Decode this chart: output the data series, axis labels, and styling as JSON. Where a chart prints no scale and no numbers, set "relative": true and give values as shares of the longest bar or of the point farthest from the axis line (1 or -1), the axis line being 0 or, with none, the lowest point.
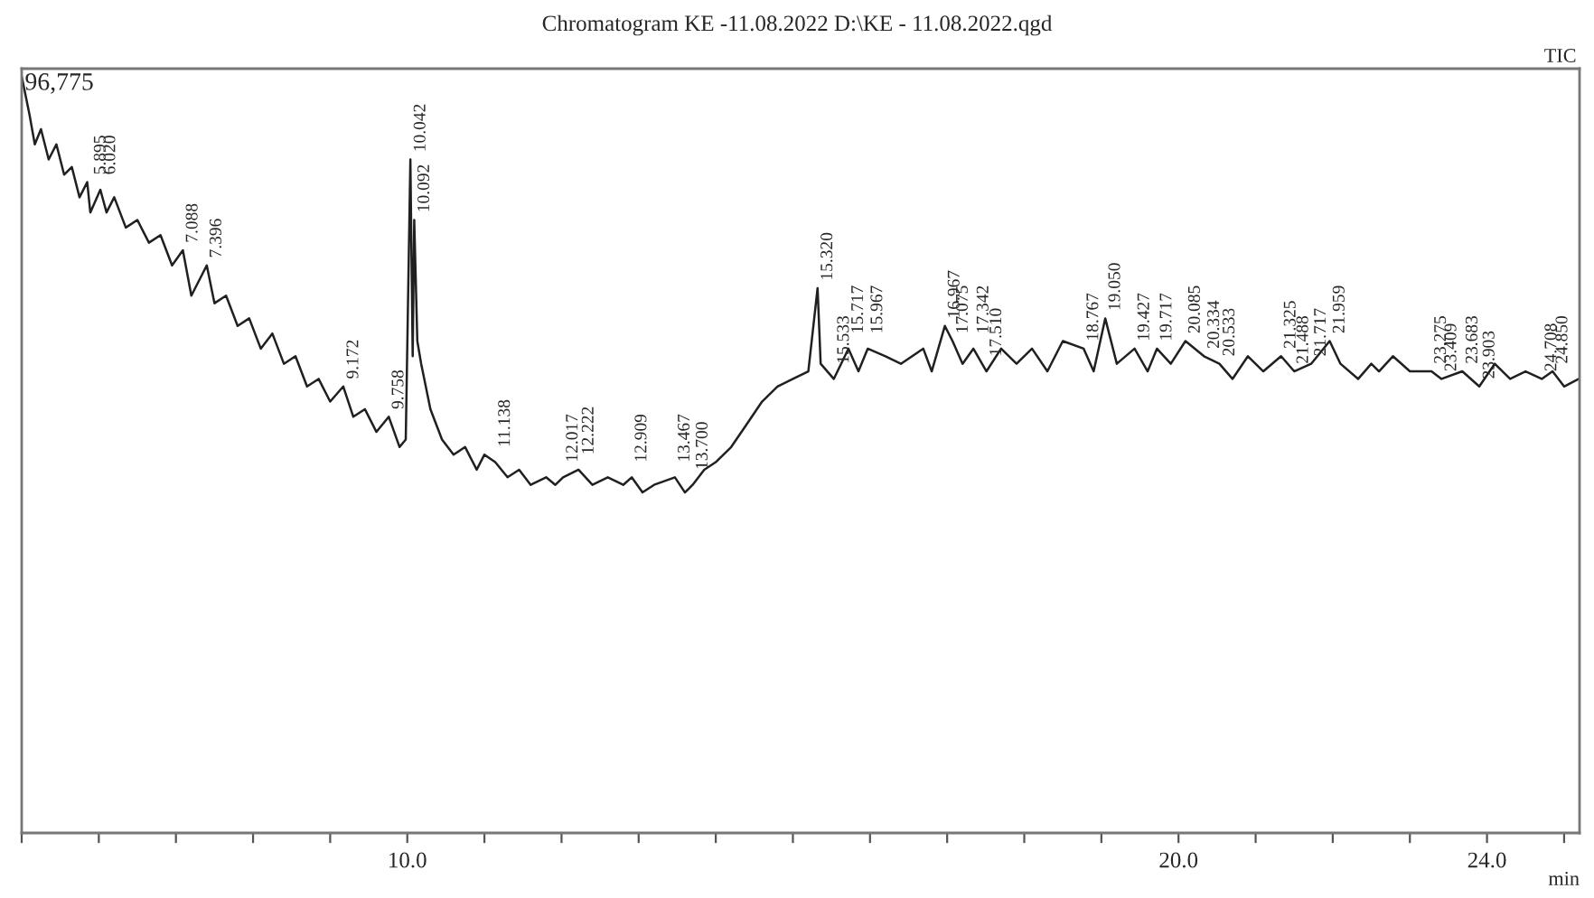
{
  "chart_data": {
    "type": "line",
    "title": "Chromatogram KE -11.08.2022 D:\\KE - 11.08.2022.qgd",
    "xlabel": "min",
    "relative": true,
    "annotations": [
      "96,775",
      "TIC",
      {
        "text": "5.895",
        "x": 5.895,
        "y": 0.86
      },
      {
        "text": "6.020",
        "x": 6.02,
        "y": 0.86
      },
      {
        "text": "7.088",
        "x": 7.088,
        "y": 0.77
      },
      {
        "text": "7.396",
        "x": 7.396,
        "y": 0.75
      },
      {
        "text": "9.172",
        "x": 9.172,
        "y": 0.59
      },
      {
        "text": "9.758",
        "x": 9.758,
        "y": 0.55
      },
      {
        "text": "10.042",
        "x": 10.042,
        "y": 0.89
      },
      {
        "text": "10.092",
        "x": 10.092,
        "y": 0.81
      },
      {
        "text": "11.138",
        "x": 11.138,
        "y": 0.5
      },
      {
        "text": "12.017",
        "x": 12.017,
        "y": 0.48
      },
      {
        "text": "12.222",
        "x": 12.222,
        "y": 0.49
      },
      {
        "text": "12.909",
        "x": 12.909,
        "y": 0.48
      },
      {
        "text": "13.467",
        "x": 13.467,
        "y": 0.48
      },
      {
        "text": "13.700",
        "x": 13.7,
        "y": 0.47
      },
      {
        "text": "15.320",
        "x": 15.32,
        "y": 0.72
      },
      {
        "text": "15.533",
        "x": 15.533,
        "y": 0.61
      },
      {
        "text": "15.717",
        "x": 15.717,
        "y": 0.65
      },
      {
        "text": "15.967",
        "x": 15.967,
        "y": 0.65
      },
      {
        "text": "16.967",
        "x": 16.967,
        "y": 0.67
      },
      {
        "text": "17.075",
        "x": 17.075,
        "y": 0.65
      },
      {
        "text": "17.342",
        "x": 17.342,
        "y": 0.65
      },
      {
        "text": "17.510",
        "x": 17.51,
        "y": 0.62
      },
      {
        "text": "18.767",
        "x": 18.767,
        "y": 0.64
      },
      {
        "text": "19.050",
        "x": 19.05,
        "y": 0.68
      },
      {
        "text": "19.427",
        "x": 19.427,
        "y": 0.64
      },
      {
        "text": "19.717",
        "x": 19.717,
        "y": 0.64
      },
      {
        "text": "20.085",
        "x": 20.085,
        "y": 0.65
      },
      {
        "text": "20.334",
        "x": 20.334,
        "y": 0.63
      },
      {
        "text": "20.533",
        "x": 20.533,
        "y": 0.62
      },
      {
        "text": "21.325",
        "x": 21.325,
        "y": 0.63
      },
      {
        "text": "21.488",
        "x": 21.488,
        "y": 0.61
      },
      {
        "text": "21.717",
        "x": 21.717,
        "y": 0.62
      },
      {
        "text": "21.959",
        "x": 21.959,
        "y": 0.65
      },
      {
        "text": "23.275",
        "x": 23.275,
        "y": 0.61
      },
      {
        "text": "23.409",
        "x": 23.409,
        "y": 0.6
      },
      {
        "text": "23.683",
        "x": 23.683,
        "y": 0.61
      },
      {
        "text": "23.903",
        "x": 23.903,
        "y": 0.59
      },
      {
        "text": "24.708",
        "x": 24.708,
        "y": 0.6
      },
      {
        "text": "24.850",
        "x": 24.85,
        "y": 0.61
      }
    ],
    "xlim": [
      5.0,
      25.2
    ],
    "xticks": [
      {
        "value": 5,
        "label": null
      },
      {
        "value": 6,
        "label": null
      },
      {
        "value": 7,
        "label": null
      },
      {
        "value": 8,
        "label": null
      },
      {
        "value": 9,
        "label": null
      },
      {
        "value": 10,
        "label": "10.0"
      },
      {
        "value": 11,
        "label": null
      },
      {
        "value": 12,
        "label": null
      },
      {
        "value": 13,
        "label": null
      },
      {
        "value": 14,
        "label": null
      },
      {
        "value": 15,
        "label": null
      },
      {
        "value": 16,
        "label": null
      },
      {
        "value": 17,
        "label": null
      },
      {
        "value": 18,
        "label": null
      },
      {
        "value": 19,
        "label": null
      },
      {
        "value": 20,
        "label": "20.0"
      },
      {
        "value": 21,
        "label": null
      },
      {
        "value": 22,
        "label": null
      },
      {
        "value": 23,
        "label": null
      },
      {
        "value": 24,
        "label": "24.0"
      },
      {
        "value": 25,
        "label": null
      }
    ],
    "tick_labels": "x",
    "grid": false,
    "legend": false,
    "series": [
      {
        "color": "#202020",
        "x": [
          5.0,
          5.1,
          5.17,
          5.25,
          5.35,
          5.45,
          5.55,
          5.65,
          5.75,
          5.85,
          5.89,
          6.02,
          6.1,
          6.2,
          6.35,
          6.5,
          6.65,
          6.8,
          6.95,
          7.09,
          7.2,
          7.3,
          7.4,
          7.5,
          7.65,
          7.8,
          7.95,
          8.1,
          8.25,
          8.4,
          8.55,
          8.7,
          8.85,
          9.0,
          9.17,
          9.3,
          9.45,
          9.6,
          9.76,
          9.9,
          9.98,
          10.04,
          10.07,
          10.09,
          10.13,
          10.18,
          10.3,
          10.45,
          10.6,
          10.75,
          10.9,
          11.0,
          11.14,
          11.3,
          11.45,
          11.6,
          11.8,
          11.92,
          12.02,
          12.22,
          12.4,
          12.6,
          12.8,
          12.91,
          13.05,
          13.2,
          13.47,
          13.6,
          13.7,
          13.85,
          14.0,
          14.2,
          14.4,
          14.6,
          14.8,
          15.0,
          15.2,
          15.32,
          15.36,
          15.53,
          15.72,
          15.85,
          15.97,
          16.2,
          16.4,
          16.69,
          16.8,
          16.97,
          17.07,
          17.2,
          17.34,
          17.51,
          17.7,
          17.9,
          18.1,
          18.3,
          18.5,
          18.77,
          18.9,
          19.05,
          19.2,
          19.43,
          19.6,
          19.72,
          19.9,
          20.09,
          20.33,
          20.53,
          20.7,
          20.9,
          21.1,
          21.33,
          21.5,
          21.72,
          21.96,
          22.1,
          22.33,
          22.5,
          22.6,
          22.78,
          23.0,
          23.28,
          23.41,
          23.68,
          23.9,
          24.1,
          24.3,
          24.5,
          24.71,
          24.85,
          25.0,
          25.19
        ],
        "values": [
          1.0,
          0.95,
          0.91,
          0.93,
          0.89,
          0.91,
          0.87,
          0.88,
          0.84,
          0.86,
          0.82,
          0.85,
          0.82,
          0.84,
          0.8,
          0.81,
          0.78,
          0.79,
          0.75,
          0.77,
          0.71,
          0.73,
          0.75,
          0.7,
          0.71,
          0.67,
          0.68,
          0.64,
          0.66,
          0.62,
          0.63,
          0.59,
          0.6,
          0.57,
          0.59,
          0.55,
          0.56,
          0.53,
          0.55,
          0.51,
          0.52,
          0.89,
          0.63,
          0.81,
          0.65,
          0.62,
          0.56,
          0.52,
          0.5,
          0.51,
          0.48,
          0.5,
          0.49,
          0.47,
          0.48,
          0.46,
          0.47,
          0.46,
          0.47,
          0.48,
          0.46,
          0.47,
          0.46,
          0.47,
          0.45,
          0.46,
          0.47,
          0.45,
          0.46,
          0.48,
          0.49,
          0.51,
          0.54,
          0.57,
          0.59,
          0.6,
          0.61,
          0.72,
          0.62,
          0.6,
          0.64,
          0.61,
          0.64,
          0.63,
          0.62,
          0.64,
          0.61,
          0.67,
          0.65,
          0.62,
          0.64,
          0.61,
          0.64,
          0.62,
          0.64,
          0.61,
          0.65,
          0.64,
          0.61,
          0.68,
          0.62,
          0.64,
          0.61,
          0.64,
          0.62,
          0.65,
          0.63,
          0.62,
          0.6,
          0.63,
          0.61,
          0.63,
          0.61,
          0.62,
          0.65,
          0.62,
          0.6,
          0.62,
          0.61,
          0.63,
          0.61,
          0.61,
          0.6,
          0.61,
          0.59,
          0.62,
          0.6,
          0.61,
          0.6,
          0.61,
          0.59,
          0.6
        ]
      }
    ]
  }
}
